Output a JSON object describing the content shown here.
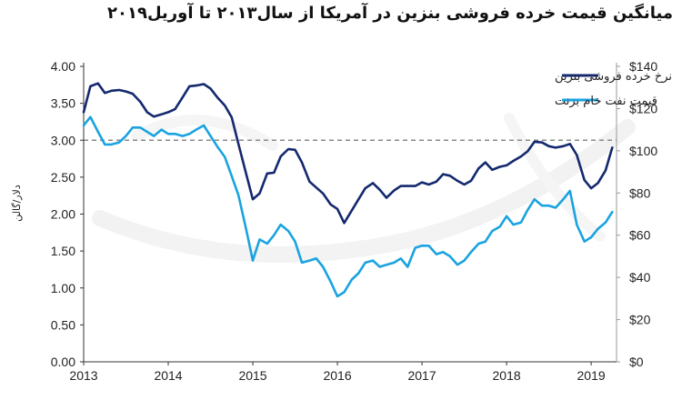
{
  "title": "میانگین قیمت خرده فروشی بنزین در آمریکا از سال۲۰۱۳ تا آوریل۲۰۱۹",
  "chart_data": {
    "type": "line",
    "ylabel": "دلار/گالن",
    "x_ticks": [
      "2013",
      "2014",
      "2015",
      "2016",
      "2017",
      "2018",
      "2019"
    ],
    "x_range": [
      2013.0,
      2019.3
    ],
    "ylim": [
      0,
      4
    ],
    "y2lim": [
      0,
      140
    ],
    "y_ticks": [
      "0.00",
      "0.50",
      "1.00",
      "1.50",
      "2.00",
      "2.50",
      "3.00",
      "3.50",
      "4.00"
    ],
    "y2_ticks": [
      "$0",
      "$20",
      "$40",
      "$60",
      "$80",
      "$100",
      "$120",
      "$140"
    ],
    "reference_line": {
      "axis": "left",
      "y": 3.0,
      "style": "dashed"
    },
    "legend_position": "top-right",
    "colors": {
      "retail": "#14286e",
      "brent": "#1aa3e0",
      "reference": "#8a8a8a",
      "axis": "#333333"
    },
    "series": [
      {
        "name": "نرخ خرده فروشی بنزین",
        "axis": "left",
        "x": [
          2013.0,
          2013.08,
          2013.17,
          2013.25,
          2013.33,
          2013.42,
          2013.5,
          2013.58,
          2013.67,
          2013.75,
          2013.83,
          2013.92,
          2014.0,
          2014.08,
          2014.17,
          2014.25,
          2014.33,
          2014.42,
          2014.5,
          2014.58,
          2014.67,
          2014.75,
          2014.83,
          2014.92,
          2015.0,
          2015.08,
          2015.17,
          2015.25,
          2015.33,
          2015.42,
          2015.5,
          2015.58,
          2015.67,
          2015.75,
          2015.83,
          2015.92,
          2016.0,
          2016.08,
          2016.17,
          2016.25,
          2016.33,
          2016.42,
          2016.5,
          2016.58,
          2016.67,
          2016.75,
          2016.83,
          2016.92,
          2017.0,
          2017.08,
          2017.17,
          2017.25,
          2017.33,
          2017.42,
          2017.5,
          2017.58,
          2017.67,
          2017.75,
          2017.83,
          2017.92,
          2018.0,
          2018.08,
          2018.17,
          2018.25,
          2018.33,
          2018.42,
          2018.5,
          2018.58,
          2018.67,
          2018.75,
          2018.83,
          2018.92,
          2019.0,
          2019.08,
          2019.17,
          2019.25
        ],
        "values": [
          3.38,
          3.73,
          3.77,
          3.64,
          3.67,
          3.68,
          3.66,
          3.63,
          3.52,
          3.38,
          3.32,
          3.35,
          3.38,
          3.42,
          3.58,
          3.73,
          3.74,
          3.76,
          3.7,
          3.58,
          3.47,
          3.31,
          2.95,
          2.55,
          2.2,
          2.28,
          2.55,
          2.56,
          2.78,
          2.88,
          2.87,
          2.7,
          2.44,
          2.36,
          2.28,
          2.13,
          2.07,
          1.88,
          2.05,
          2.2,
          2.35,
          2.42,
          2.33,
          2.22,
          2.32,
          2.38,
          2.38,
          2.38,
          2.43,
          2.4,
          2.44,
          2.54,
          2.52,
          2.45,
          2.4,
          2.45,
          2.62,
          2.7,
          2.6,
          2.64,
          2.66,
          2.72,
          2.78,
          2.85,
          2.98,
          2.97,
          2.92,
          2.9,
          2.92,
          2.95,
          2.8,
          2.46,
          2.35,
          2.42,
          2.59,
          2.9
        ]
      },
      {
        "name": "قیمت نفت خام برنت",
        "axis": "right",
        "x": [
          2013.0,
          2013.08,
          2013.17,
          2013.25,
          2013.33,
          2013.42,
          2013.5,
          2013.58,
          2013.67,
          2013.75,
          2013.83,
          2013.92,
          2014.0,
          2014.08,
          2014.17,
          2014.25,
          2014.33,
          2014.42,
          2014.5,
          2014.58,
          2014.67,
          2014.75,
          2014.83,
          2014.92,
          2015.0,
          2015.08,
          2015.17,
          2015.25,
          2015.33,
          2015.42,
          2015.5,
          2015.58,
          2015.67,
          2015.75,
          2015.83,
          2015.92,
          2016.0,
          2016.08,
          2016.17,
          2016.25,
          2016.33,
          2016.42,
          2016.5,
          2016.58,
          2016.67,
          2016.75,
          2016.83,
          2016.92,
          2017.0,
          2017.08,
          2017.17,
          2017.25,
          2017.33,
          2017.42,
          2017.5,
          2017.58,
          2017.67,
          2017.75,
          2017.83,
          2017.92,
          2018.0,
          2018.08,
          2018.17,
          2018.25,
          2018.33,
          2018.42,
          2018.5,
          2018.58,
          2018.67,
          2018.75,
          2018.83,
          2018.92,
          2019.0,
          2019.08,
          2019.17,
          2019.25
        ],
        "values": [
          112,
          116,
          109,
          103,
          103,
          104,
          107,
          111,
          111,
          109,
          107,
          110,
          108,
          108,
          107,
          108,
          110,
          112,
          107,
          102,
          97,
          88,
          79,
          63,
          48,
          58,
          56,
          60,
          65,
          62,
          57,
          47,
          48,
          49,
          45,
          38,
          31,
          33,
          39,
          42,
          47,
          48,
          45,
          46,
          47,
          49,
          45,
          54,
          55,
          55,
          51,
          52,
          50,
          46,
          48,
          52,
          56,
          57,
          62,
          64,
          69,
          65,
          66,
          72,
          77,
          74,
          74,
          73,
          77,
          81,
          65,
          57,
          59,
          63,
          66,
          71
        ]
      }
    ]
  }
}
